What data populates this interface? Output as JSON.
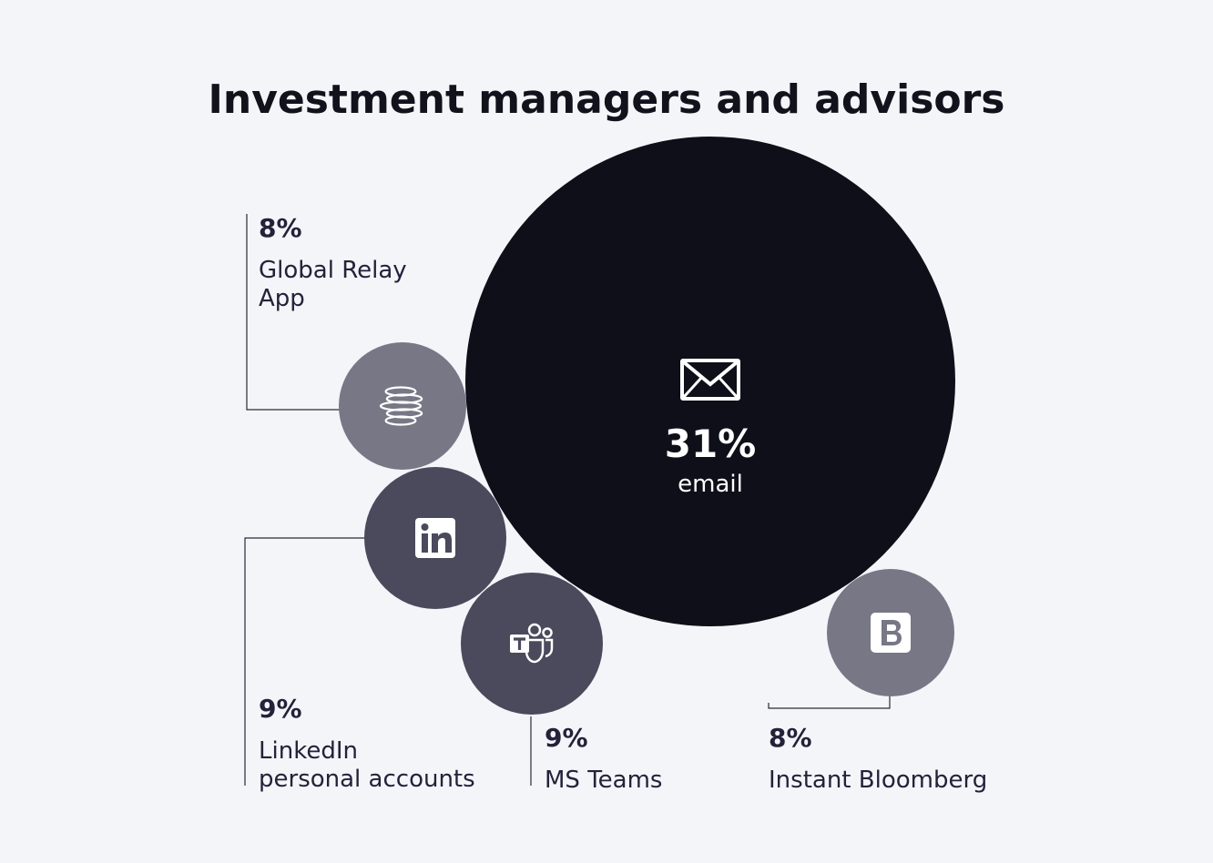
{
  "chart_data": {
    "type": "bubble",
    "title": "Investment managers and advisors",
    "unit": "%",
    "items": [
      {
        "key": "email",
        "value": 31,
        "value_label": "31%",
        "label_lines": [
          "email"
        ],
        "color": "#0f0f1a",
        "icon": "envelope-icon"
      },
      {
        "key": "global-relay",
        "value": 8,
        "value_label": "8%",
        "label_lines": [
          "Global Relay",
          "App"
        ],
        "color": "#787786",
        "icon": "global-relay-logo-icon"
      },
      {
        "key": "linkedin",
        "value": 9,
        "value_label": "9%",
        "label_lines": [
          "LinkedIn",
          "personal accounts"
        ],
        "color": "#4a4a5c",
        "icon": "linkedin-icon"
      },
      {
        "key": "ms-teams",
        "value": 9,
        "value_label": "9%",
        "label_lines": [
          "MS Teams"
        ],
        "color": "#4a4a5c",
        "icon": "ms-teams-icon"
      },
      {
        "key": "instant-bloomberg",
        "value": 8,
        "value_label": "8%",
        "label_lines": [
          "Instant Bloomberg"
        ],
        "color": "#787786",
        "icon": "bloomberg-icon"
      }
    ]
  }
}
